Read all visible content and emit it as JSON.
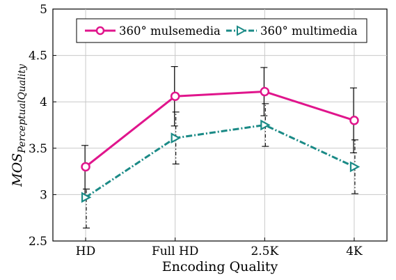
{
  "chart_data": {
    "type": "line",
    "categories": [
      "HD",
      "Full HD",
      "2.5K",
      "4K"
    ],
    "xlabel": "Encoding Quality",
    "ylabel_main": "MOS",
    "ylabel_sub": "PerceptualQuality",
    "ylim": [
      2.5,
      5
    ],
    "yticks": [
      "2.5",
      "3",
      "3.5",
      "4",
      "4.5",
      "5"
    ],
    "grid": true,
    "legend_position": "top",
    "series": [
      {
        "name": "360° mulsemedia",
        "color": "#e0158c",
        "line_style": "solid",
        "marker": "circle",
        "values": [
          3.3,
          4.06,
          4.11,
          3.8
        ],
        "error_low": [
          2.98,
          3.74,
          3.85,
          3.45
        ],
        "error_high": [
          3.53,
          4.38,
          4.37,
          4.15
        ]
      },
      {
        "name": "360° multimedia",
        "color": "#1a8a86",
        "line_style": "dashdot",
        "marker": "triangle",
        "values": [
          2.97,
          3.61,
          3.75,
          3.3
        ],
        "error_low": [
          2.64,
          3.33,
          3.52,
          3.01
        ],
        "error_high": [
          3.06,
          3.89,
          3.98,
          3.59
        ]
      }
    ]
  }
}
